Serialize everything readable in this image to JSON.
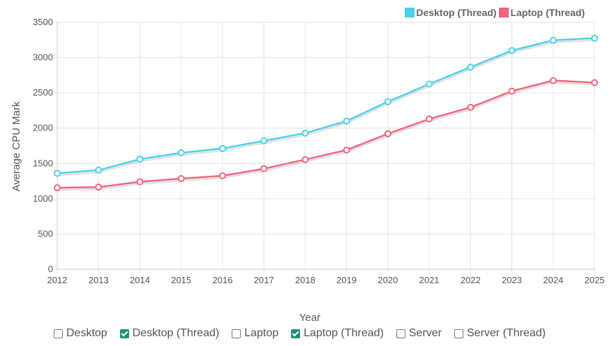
{
  "chart_data": {
    "type": "line",
    "x": [
      "2012",
      "2013",
      "2014",
      "2015",
      "2016",
      "2017",
      "2018",
      "2019",
      "2020",
      "2021",
      "2022",
      "2023",
      "2024",
      "2025"
    ],
    "xlabel": "Year",
    "ylabel": "Average CPU Mark",
    "ylim": [
      0,
      3500
    ],
    "yticks": [
      0,
      500,
      1000,
      1500,
      2000,
      2500,
      3000,
      3500
    ],
    "grid": true,
    "legend_position": "top-right",
    "series": [
      {
        "name": "Desktop (Thread)",
        "color": "#4dd0ea",
        "values": [
          1360,
          1405,
          1560,
          1650,
          1712,
          1820,
          1930,
          2100,
          2375,
          2625,
          2865,
          3100,
          3245,
          3275
        ]
      },
      {
        "name": "Laptop (Thread)",
        "color": "#f2657f",
        "values": [
          1155,
          1165,
          1240,
          1285,
          1325,
          1425,
          1555,
          1690,
          1920,
          2130,
          2295,
          2525,
          2675,
          2645
        ]
      }
    ]
  },
  "filters": [
    {
      "label": "Desktop",
      "checked": false
    },
    {
      "label": "Desktop (Thread)",
      "checked": true
    },
    {
      "label": "Laptop",
      "checked": false
    },
    {
      "label": "Laptop (Thread)",
      "checked": true
    },
    {
      "label": "Server",
      "checked": false
    },
    {
      "label": "Server (Thread)",
      "checked": false
    }
  ]
}
